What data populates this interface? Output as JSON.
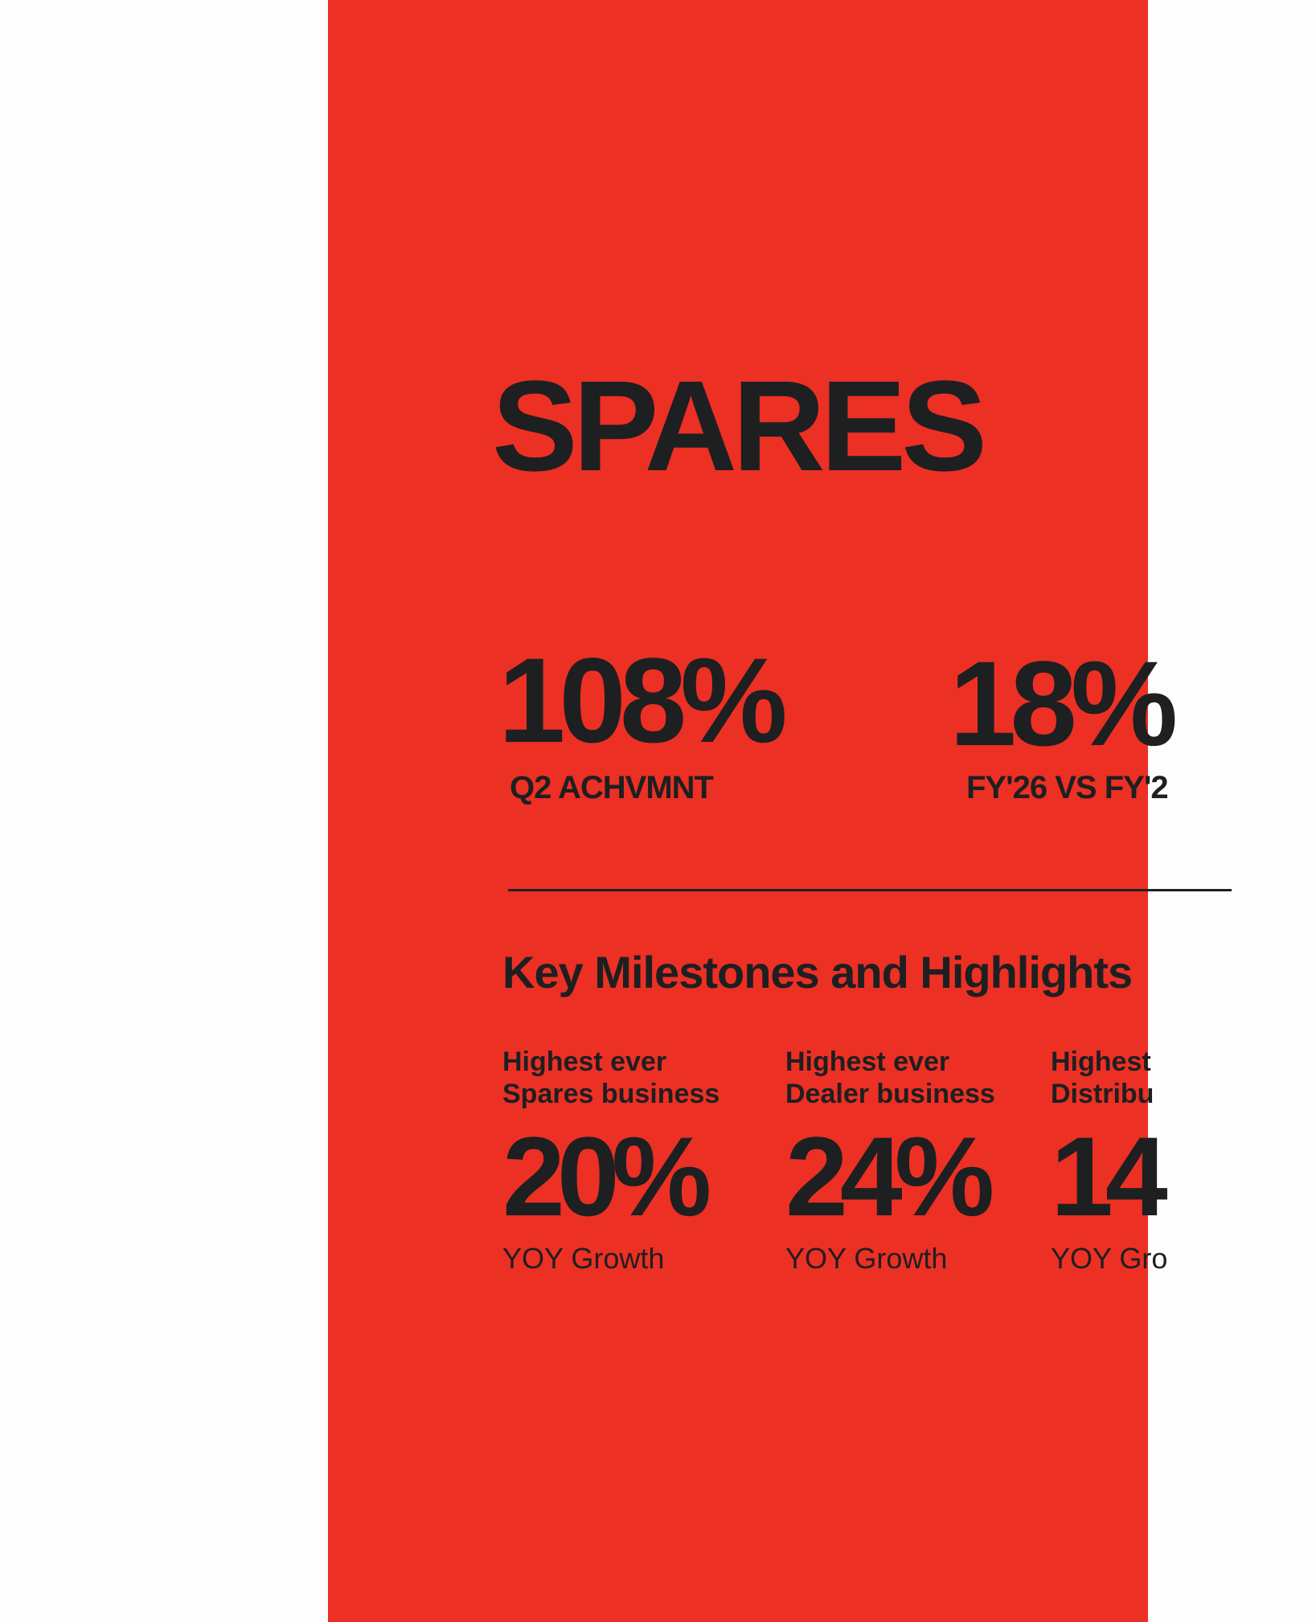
{
  "page": {
    "title": "SPARES",
    "kpis": [
      {
        "value": "108%",
        "label": "Q2 ACHVMNT"
      },
      {
        "value": "18%",
        "label": "FY'26 VS FY'2"
      }
    ],
    "section_heading": "Key Milestones and Highlights",
    "highlights": [
      {
        "line1": "Highest ever",
        "line2": "Spares business",
        "value": "20%",
        "caption": "YOY Growth"
      },
      {
        "line1": "Highest ever",
        "line2": "Dealer business",
        "value": "24%",
        "caption": "YOY Growth"
      },
      {
        "line1": "Highest",
        "line2": "Distribu",
        "value": "14",
        "caption": "YOY Gro"
      }
    ]
  },
  "colors": {
    "panel": "#ec3024",
    "text": "#1e1f21",
    "background": "#fdfdfd"
  }
}
